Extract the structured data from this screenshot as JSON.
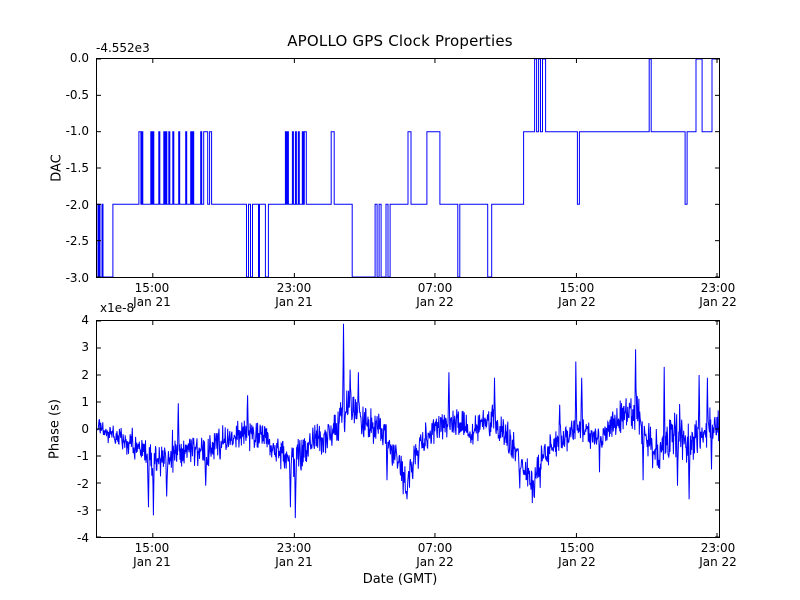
{
  "figure": {
    "title": "APOLLO GPS Clock Properties",
    "background_color": "#ffffff",
    "frame_color": "#000000",
    "line_color": "#0000ff"
  },
  "chart_data": [
    {
      "type": "line",
      "subtype": "step",
      "panel": "top",
      "ylabel": "DAC",
      "y_offset_text": "-4.552e3",
      "ylim": [
        -3.0,
        0.0
      ],
      "grid": false,
      "legend": "none",
      "y_ticks": [
        "0.0",
        "-0.5",
        "-1.0",
        "-1.5",
        "-2.0",
        "-2.5",
        "-3.0"
      ],
      "x_ticks": [
        {
          "time": "15:00",
          "date": "Jan 21",
          "frac": 0.0897
        },
        {
          "time": "23:00",
          "date": "Jan 21",
          "frac": 0.3173
        },
        {
          "time": "07:00",
          "date": "Jan 22",
          "frac": 0.5433
        },
        {
          "time": "15:00",
          "date": "Jan 22",
          "frac": 0.7708
        },
        {
          "time": "23:00",
          "date": "Jan 22",
          "frac": 0.9968
        }
      ],
      "segments": [
        [
          0.0,
          0.0016,
          -2
        ],
        [
          0.0016,
          0.0032,
          -3
        ],
        [
          0.0032,
          0.0048,
          -2
        ],
        [
          0.0048,
          0.008,
          -3
        ],
        [
          0.008,
          0.0096,
          -2
        ],
        [
          0.0096,
          0.0256,
          -3
        ],
        [
          0.0256,
          0.0673,
          -2
        ],
        [
          0.0673,
          0.0705,
          -1
        ],
        [
          0.0705,
          0.0721,
          -2
        ],
        [
          0.0721,
          0.0737,
          -1
        ],
        [
          0.0737,
          0.0865,
          -2
        ],
        [
          0.0865,
          0.0881,
          -1
        ],
        [
          0.0881,
          0.0897,
          -2
        ],
        [
          0.0897,
          0.0913,
          -1
        ],
        [
          0.0913,
          0.0994,
          -2
        ],
        [
          0.0994,
          0.101,
          -1
        ],
        [
          0.101,
          0.1074,
          -2
        ],
        [
          0.1074,
          0.109,
          -1
        ],
        [
          0.109,
          0.1106,
          -2
        ],
        [
          0.1106,
          0.1122,
          -1
        ],
        [
          0.1122,
          0.1154,
          -2
        ],
        [
          0.1154,
          0.117,
          -1
        ],
        [
          0.117,
          0.1218,
          -2
        ],
        [
          0.1218,
          0.1234,
          -1
        ],
        [
          0.1234,
          0.1314,
          -2
        ],
        [
          0.1314,
          0.133,
          -1
        ],
        [
          0.133,
          0.1426,
          -2
        ],
        [
          0.1426,
          0.1442,
          -1
        ],
        [
          0.1442,
          0.1506,
          -2
        ],
        [
          0.1506,
          0.1522,
          -1
        ],
        [
          0.1522,
          0.1538,
          -2
        ],
        [
          0.1538,
          0.1554,
          -1
        ],
        [
          0.1554,
          0.1667,
          -2
        ],
        [
          0.1667,
          0.1683,
          -1
        ],
        [
          0.1683,
          0.1715,
          -2
        ],
        [
          0.1715,
          0.1779,
          -1
        ],
        [
          0.1779,
          0.1811,
          -2
        ],
        [
          0.1811,
          0.1843,
          -1
        ],
        [
          0.1843,
          0.2404,
          -2
        ],
        [
          0.2404,
          0.2436,
          -3
        ],
        [
          0.2436,
          0.2468,
          -2
        ],
        [
          0.2468,
          0.25,
          -3
        ],
        [
          0.25,
          0.2596,
          -2
        ],
        [
          0.2596,
          0.2612,
          -3
        ],
        [
          0.2612,
          0.2708,
          -2
        ],
        [
          0.2708,
          0.2756,
          -3
        ],
        [
          0.2756,
          0.3029,
          -2
        ],
        [
          0.3029,
          0.3045,
          -1
        ],
        [
          0.3045,
          0.3061,
          -2
        ],
        [
          0.3061,
          0.3077,
          -1
        ],
        [
          0.3077,
          0.3141,
          -2
        ],
        [
          0.3141,
          0.3157,
          -1
        ],
        [
          0.3157,
          0.3189,
          -2
        ],
        [
          0.3189,
          0.3205,
          -1
        ],
        [
          0.3205,
          0.3237,
          -2
        ],
        [
          0.3237,
          0.3253,
          -1
        ],
        [
          0.3253,
          0.3301,
          -2
        ],
        [
          0.3301,
          0.3317,
          -1
        ],
        [
          0.3317,
          0.3333,
          -2
        ],
        [
          0.3333,
          0.3365,
          -1
        ],
        [
          0.3365,
          0.3766,
          -2
        ],
        [
          0.3766,
          0.3814,
          -1
        ],
        [
          0.3814,
          0.4103,
          -2
        ],
        [
          0.4103,
          0.4471,
          -3
        ],
        [
          0.4471,
          0.4503,
          -2
        ],
        [
          0.4503,
          0.4535,
          -3
        ],
        [
          0.4535,
          0.4567,
          -2
        ],
        [
          0.4567,
          0.4647,
          -3
        ],
        [
          0.4647,
          0.4679,
          -2
        ],
        [
          0.4679,
          0.4712,
          -3
        ],
        [
          0.4712,
          0.5,
          -2
        ],
        [
          0.5,
          0.5048,
          -1
        ],
        [
          0.5048,
          0.5304,
          -2
        ],
        [
          0.5304,
          0.5513,
          -1
        ],
        [
          0.5513,
          0.5801,
          -2
        ],
        [
          0.5801,
          0.5833,
          -3
        ],
        [
          0.5833,
          0.6282,
          -2
        ],
        [
          0.6282,
          0.6346,
          -3
        ],
        [
          0.6346,
          0.6859,
          -2
        ],
        [
          0.6859,
          0.7035,
          -1
        ],
        [
          0.7035,
          0.7067,
          0
        ],
        [
          0.7067,
          0.7099,
          -1
        ],
        [
          0.7099,
          0.7131,
          0
        ],
        [
          0.7131,
          0.7163,
          -1
        ],
        [
          0.7163,
          0.7212,
          0
        ],
        [
          0.7212,
          0.7724,
          -1
        ],
        [
          0.7724,
          0.7756,
          -2
        ],
        [
          0.7756,
          0.8878,
          -1
        ],
        [
          0.8878,
          0.891,
          0
        ],
        [
          0.891,
          0.9455,
          -1
        ],
        [
          0.9455,
          0.9487,
          -2
        ],
        [
          0.9487,
          0.9631,
          -1
        ],
        [
          0.9631,
          0.9728,
          0
        ],
        [
          0.9728,
          0.9888,
          -1
        ],
        [
          0.9888,
          1.0,
          0
        ]
      ]
    },
    {
      "type": "line",
      "subtype": "noisy",
      "panel": "bottom",
      "ylabel": "Phase (s)",
      "y_offset_text": "x1e-8",
      "xlabel": "Date (GMT)",
      "ylim": [
        -4,
        4
      ],
      "grid": false,
      "legend": "none",
      "y_ticks": [
        "4",
        "3",
        "2",
        "1",
        "0",
        "-1",
        "-2",
        "-3",
        "-4"
      ],
      "x_ticks": [
        {
          "time": "15:00",
          "date": "Jan 21",
          "frac": 0.0897
        },
        {
          "time": "23:00",
          "date": "Jan 21",
          "frac": 0.3173
        },
        {
          "time": "07:00",
          "date": "Jan 22",
          "frac": 0.5433
        },
        {
          "time": "15:00",
          "date": "Jan 22",
          "frac": 0.7708
        },
        {
          "time": "23:00",
          "date": "Jan 22",
          "frac": 0.9968
        }
      ],
      "trend_anchors": [
        [
          0.002,
          0.0
        ],
        [
          0.022,
          -0.1
        ],
        [
          0.046,
          -0.35
        ],
        [
          0.071,
          -0.9
        ],
        [
          0.087,
          -1.1
        ],
        [
          0.103,
          -1.2
        ],
        [
          0.119,
          -1.05
        ],
        [
          0.135,
          -0.8
        ],
        [
          0.159,
          -0.75
        ],
        [
          0.175,
          -0.9
        ],
        [
          0.191,
          -0.6
        ],
        [
          0.215,
          -0.3
        ],
        [
          0.239,
          -0.15
        ],
        [
          0.255,
          -0.35
        ],
        [
          0.266,
          -0.2
        ],
        [
          0.287,
          -0.7
        ],
        [
          0.311,
          -1.2
        ],
        [
          0.327,
          -0.9
        ],
        [
          0.343,
          -0.5
        ],
        [
          0.359,
          -0.3
        ],
        [
          0.378,
          -0.2
        ],
        [
          0.391,
          0.3
        ],
        [
          0.402,
          0.8
        ],
        [
          0.415,
          0.65
        ],
        [
          0.431,
          0.3
        ],
        [
          0.452,
          0.1
        ],
        [
          0.471,
          -0.6
        ],
        [
          0.487,
          -1.5
        ],
        [
          0.498,
          -2.1
        ],
        [
          0.511,
          -1.0
        ],
        [
          0.527,
          -0.4
        ],
        [
          0.551,
          0.1
        ],
        [
          0.575,
          0.3
        ],
        [
          0.591,
          0.1
        ],
        [
          0.599,
          -0.35
        ],
        [
          0.615,
          0.2
        ],
        [
          0.639,
          0.3
        ],
        [
          0.655,
          -0.1
        ],
        [
          0.671,
          -0.8
        ],
        [
          0.687,
          -1.6
        ],
        [
          0.7,
          -2.1
        ],
        [
          0.712,
          -1.3
        ],
        [
          0.728,
          -0.6
        ],
        [
          0.744,
          -0.4
        ],
        [
          0.76,
          -0.2
        ],
        [
          0.776,
          0.1
        ],
        [
          0.792,
          -0.1
        ],
        [
          0.808,
          -0.4
        ],
        [
          0.824,
          0.1
        ],
        [
          0.84,
          0.4
        ],
        [
          0.856,
          0.6
        ],
        [
          0.872,
          0.5
        ],
        [
          0.888,
          -0.5
        ],
        [
          0.904,
          -0.9
        ],
        [
          0.92,
          -0.4
        ],
        [
          0.936,
          -0.2
        ],
        [
          0.952,
          -0.6
        ],
        [
          0.968,
          -0.3
        ],
        [
          0.981,
          0.0
        ],
        [
          0.992,
          0.2
        ],
        [
          1.0,
          0.1
        ]
      ],
      "noise_amp_anchors": [
        [
          0.0,
          0.22
        ],
        [
          0.08,
          0.33
        ],
        [
          0.16,
          0.36
        ],
        [
          0.24,
          0.32
        ],
        [
          0.32,
          0.36
        ],
        [
          0.4,
          0.42
        ],
        [
          0.48,
          0.38
        ],
        [
          0.56,
          0.33
        ],
        [
          0.64,
          0.32
        ],
        [
          0.7,
          0.38
        ],
        [
          0.76,
          0.33
        ],
        [
          0.82,
          0.33
        ],
        [
          0.87,
          0.42
        ],
        [
          0.93,
          0.48
        ],
        [
          1.0,
          0.38
        ]
      ],
      "spikes": [
        [
          0.083,
          -2.9
        ],
        [
          0.091,
          -3.2
        ],
        [
          0.112,
          -2.5
        ],
        [
          0.131,
          0.95
        ],
        [
          0.175,
          -2.1
        ],
        [
          0.242,
          1.25
        ],
        [
          0.311,
          -2.9
        ],
        [
          0.319,
          -3.3
        ],
        [
          0.396,
          3.9
        ],
        [
          0.407,
          2.2
        ],
        [
          0.42,
          2.1
        ],
        [
          0.466,
          -1.9
        ],
        [
          0.498,
          -2.6
        ],
        [
          0.566,
          2.1
        ],
        [
          0.639,
          1.9
        ],
        [
          0.68,
          -2.2
        ],
        [
          0.703,
          -2.55
        ],
        [
          0.744,
          0.9
        ],
        [
          0.77,
          2.5
        ],
        [
          0.779,
          1.9
        ],
        [
          0.808,
          -1.6
        ],
        [
          0.866,
          2.95
        ],
        [
          0.878,
          -1.9
        ],
        [
          0.912,
          2.3
        ],
        [
          0.933,
          -2.1
        ],
        [
          0.952,
          -2.6
        ],
        [
          0.968,
          2.0
        ],
        [
          0.981,
          1.9
        ],
        [
          0.988,
          -1.5
        ]
      ]
    }
  ]
}
